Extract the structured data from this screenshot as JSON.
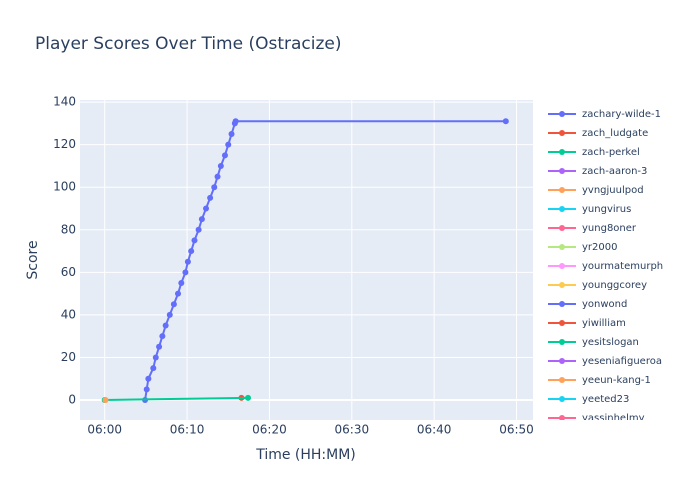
{
  "chart_data": {
    "type": "line",
    "title": "Player Scores Over Time (Ostracize)",
    "x_label": "Time (HH:MM)",
    "y_label": "Score",
    "xlim": [
      -3,
      52
    ],
    "ylim": [
      -9.4,
      141
    ],
    "xticks": [
      {
        "value": 0,
        "label": "06:00"
      },
      {
        "value": 10,
        "label": "06:10"
      },
      {
        "value": 20,
        "label": "06:20"
      },
      {
        "value": 30,
        "label": "06:30"
      },
      {
        "value": 40,
        "label": "06:40"
      },
      {
        "value": 50,
        "label": "06:50"
      }
    ],
    "yticks": [
      0,
      20,
      40,
      60,
      80,
      100,
      120,
      140
    ],
    "grid": true,
    "legend": "right",
    "series": [
      {
        "name": "zachary-wilde-1",
        "color": "#636efa",
        "x": [
          4.9,
          5.1,
          5.3,
          5.9,
          6.2,
          6.6,
          7.0,
          7.4,
          7.9,
          8.4,
          8.9,
          9.3,
          9.8,
          10.1,
          10.5,
          10.9,
          11.4,
          11.8,
          12.3,
          12.8,
          13.3,
          13.7,
          14.1,
          14.6,
          15.0,
          15.4,
          15.8,
          15.9,
          48.7
        ],
        "values": [
          0,
          5,
          10,
          15,
          20,
          25,
          30,
          35,
          40,
          45,
          50,
          55,
          60,
          65,
          70,
          75,
          80,
          85,
          90,
          95,
          100,
          105,
          110,
          115,
          120,
          125,
          130,
          131,
          131
        ]
      },
      {
        "name": "zach_ludgate",
        "color": "#EF553B",
        "x": [
          16.6
        ],
        "values": [
          1
        ]
      },
      {
        "name": "zach-perkel",
        "color": "#00cc96",
        "x": [
          0.0,
          17.4
        ],
        "values": [
          0,
          1
        ]
      },
      {
        "name": "zach-aaron-3",
        "color": "#ab63fa",
        "x": [],
        "values": []
      },
      {
        "name": "yvngjuulpod",
        "color": "#FFA15A",
        "x": [
          0.1
        ],
        "values": [
          0
        ]
      },
      {
        "name": "yungvirus",
        "color": "#19d3f3",
        "x": [],
        "values": []
      },
      {
        "name": "yung8oner",
        "color": "#FF6692",
        "x": [],
        "values": []
      },
      {
        "name": "yr2000",
        "color": "#B6E880",
        "x": [],
        "values": []
      },
      {
        "name": "yourmatemurph",
        "color": "#FF97FF",
        "x": [],
        "values": []
      },
      {
        "name": "younggcorey",
        "color": "#FECB52",
        "x": [],
        "values": []
      },
      {
        "name": "yonwond",
        "color": "#636efa",
        "x": [],
        "values": []
      },
      {
        "name": "yiwilliam",
        "color": "#EF553B",
        "x": [],
        "values": []
      },
      {
        "name": "yesitslogan",
        "color": "#00cc96",
        "x": [],
        "values": []
      },
      {
        "name": "yeseniafigueroa",
        "color": "#ab63fa",
        "x": [],
        "values": []
      },
      {
        "name": "yeeun-kang-1",
        "color": "#FFA15A",
        "x": [],
        "values": []
      },
      {
        "name": "yeeted23",
        "color": "#19d3f3",
        "x": [],
        "values": []
      },
      {
        "name": "yassinhelmy",
        "color": "#FF6692",
        "x": [],
        "values": []
      }
    ]
  }
}
